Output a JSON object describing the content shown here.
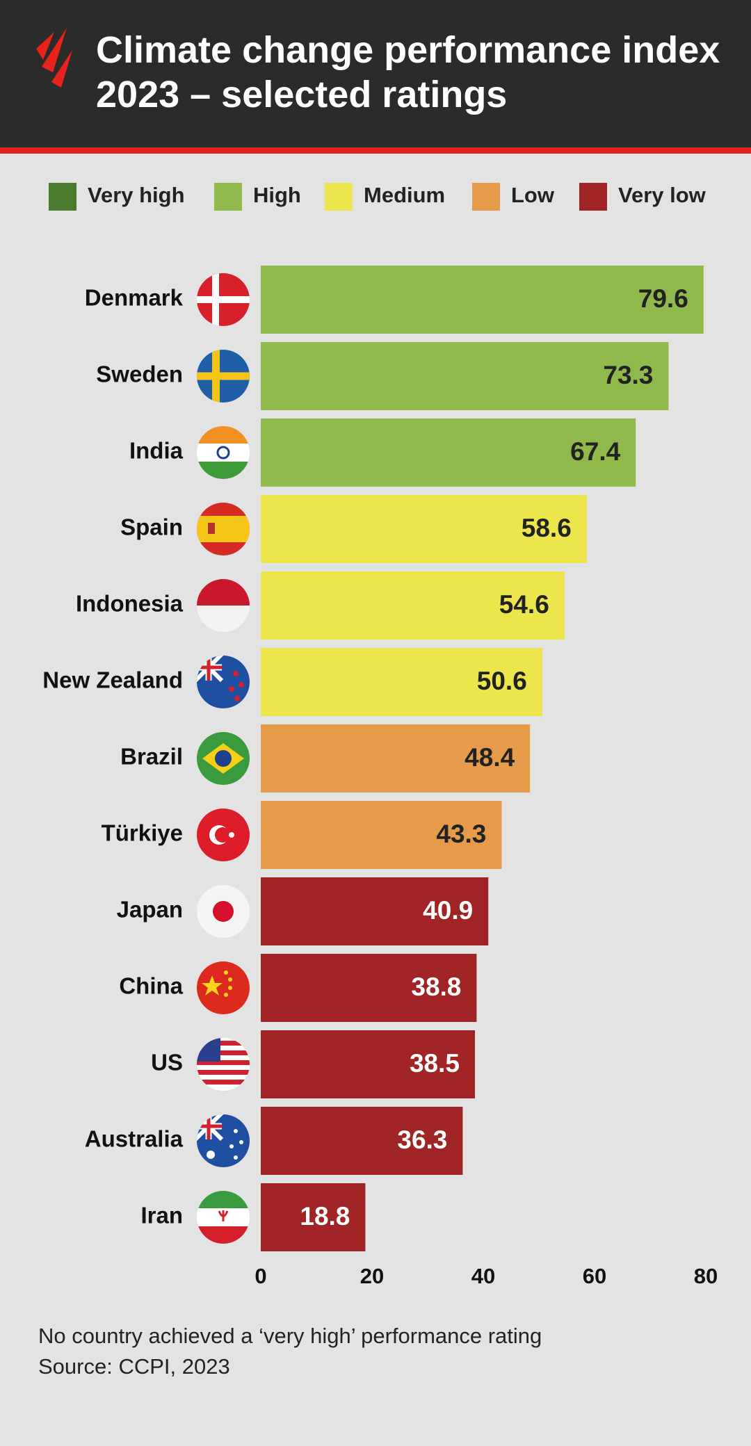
{
  "chart_data": {
    "type": "bar",
    "orientation": "horizontal",
    "title": "Climate change performance index 2023 – selected ratings",
    "legend": [
      {
        "name": "Very high",
        "color": "#4a7a2e"
      },
      {
        "name": "High",
        "color": "#8fb94a"
      },
      {
        "name": "Medium",
        "color": "#ede54c"
      },
      {
        "name": "Low",
        "color": "#e69b4a"
      },
      {
        "name": "Very low",
        "color": "#a02425"
      }
    ],
    "categories": [
      "Denmark",
      "Sweden",
      "India",
      "Spain",
      "Indonesia",
      "New Zealand",
      "Brazil",
      "Türkiye",
      "Japan",
      "China",
      "US",
      "Australia",
      "Iran"
    ],
    "values": [
      79.6,
      73.3,
      67.4,
      58.6,
      54.6,
      50.6,
      48.4,
      43.3,
      40.9,
      38.8,
      38.5,
      36.3,
      18.8
    ],
    "colors": [
      "#8fb94a",
      "#8fb94a",
      "#8fb94a",
      "#ede54c",
      "#ede54c",
      "#ede54c",
      "#e69b4a",
      "#e69b4a",
      "#a02425",
      "#a02425",
      "#a02425",
      "#a02425",
      "#a02425"
    ],
    "xlim": [
      0,
      80
    ],
    "xticks": [
      0,
      20,
      40,
      60,
      80
    ],
    "grid": false,
    "note": "No country achieved a ‘very high’ performance rating",
    "source": "Source:  CCPI, 2023"
  }
}
